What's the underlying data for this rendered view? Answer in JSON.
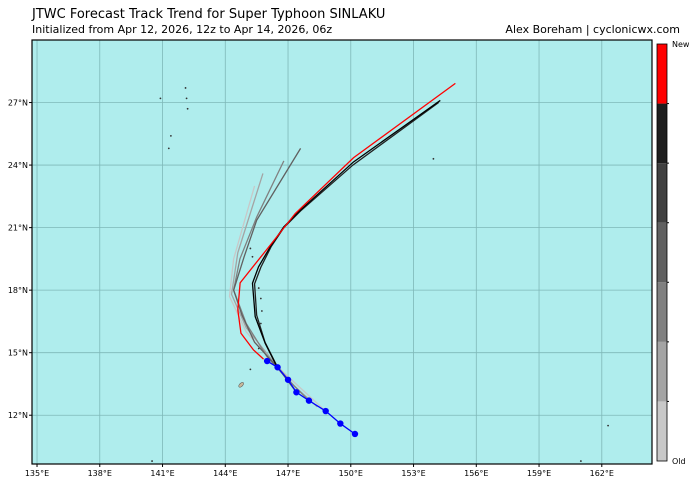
{
  "chart_data": {
    "type": "line",
    "title": "JTWC Forecast Track Trend for Super Typhoon SINLAKU",
    "subtitle": "Initialized from Apr 12, 2026, 12z to Apr 14, 2026, 06z",
    "credit": "Alex Boreham | cyclonicwx.com",
    "xlim": [
      134.76,
      164.4
    ],
    "ylim": [
      9.66,
      30.0
    ],
    "grid": true,
    "background_color": "#afeded",
    "x_ticks": [
      135,
      138,
      141,
      144,
      147,
      150,
      153,
      156,
      159,
      162
    ],
    "x_tick_labels": [
      "135°E",
      "138°E",
      "141°E",
      "144°E",
      "147°E",
      "150°E",
      "153°E",
      "156°E",
      "159°E",
      "162°E"
    ],
    "y_ticks": [
      12,
      15,
      18,
      21,
      24,
      27
    ],
    "y_tick_labels": [
      "12°N",
      "15°N",
      "18°N",
      "21°N",
      "24°N",
      "27°N"
    ],
    "colorbar": {
      "top_label": "New",
      "bottom_label": "Old",
      "colors": [
        "#c8c8c8",
        "#a4a4a4",
        "#808080",
        "#606060",
        "#404040",
        "#1e1e1e",
        "#ff0000"
      ]
    },
    "forecast_tracks": [
      {
        "color": "#c8c8c8",
        "points": [
          [
            148.8,
            12.2
          ],
          [
            147.6,
            13.3
          ],
          [
            146.3,
            14.5
          ],
          [
            145.0,
            16.0
          ],
          [
            144.2,
            17.7
          ],
          [
            144.4,
            19.5
          ],
          [
            145.4,
            23.0
          ]
        ]
      },
      {
        "color": "#a4a4a4",
        "points": [
          [
            148.4,
            12.4
          ],
          [
            147.3,
            13.4
          ],
          [
            146.2,
            14.7
          ],
          [
            145.0,
            16.2
          ],
          [
            144.3,
            17.8
          ],
          [
            144.6,
            19.8
          ],
          [
            145.8,
            23.6
          ]
        ]
      },
      {
        "color": "#808080",
        "points": [
          [
            148.0,
            12.7
          ],
          [
            147.0,
            13.7
          ],
          [
            146.0,
            14.8
          ],
          [
            145.0,
            16.4
          ],
          [
            144.4,
            18.0
          ],
          [
            144.7,
            19.5
          ],
          [
            145.5,
            21.5
          ],
          [
            146.8,
            24.2
          ]
        ]
      },
      {
        "color": "#606060",
        "points": [
          [
            147.4,
            13.1
          ],
          [
            146.5,
            14.3
          ],
          [
            145.4,
            15.5
          ],
          [
            144.8,
            16.8
          ],
          [
            144.4,
            18.0
          ],
          [
            144.9,
            19.6
          ],
          [
            145.5,
            21.35
          ],
          [
            147.6,
            24.8
          ]
        ]
      },
      {
        "color": "#202020",
        "points": [
          [
            146.5,
            14.3
          ],
          [
            145.9,
            15.5
          ],
          [
            145.5,
            16.8
          ],
          [
            145.4,
            18.3
          ],
          [
            145.7,
            19.1
          ],
          [
            146.2,
            20.1
          ],
          [
            146.8,
            21.0
          ],
          [
            147.6,
            21.8
          ],
          [
            150.1,
            24.0
          ],
          [
            154.2,
            27.0
          ]
        ]
      },
      {
        "color": "#000000",
        "points": [
          [
            146.47,
            14.33
          ],
          [
            145.91,
            15.45
          ],
          [
            145.43,
            16.73
          ],
          [
            145.3,
            18.33
          ],
          [
            145.59,
            19.12
          ],
          [
            146.15,
            20.08
          ],
          [
            146.79,
            21.03
          ],
          [
            147.58,
            21.83
          ],
          [
            150.13,
            24.15
          ],
          [
            154.28,
            27.1
          ]
        ]
      },
      {
        "color": "#ff0000",
        "points": [
          [
            145.83,
            14.69
          ],
          [
            145.35,
            15.13
          ],
          [
            144.75,
            15.93
          ],
          [
            144.6,
            17.05
          ],
          [
            144.71,
            18.35
          ],
          [
            146.15,
            20.16
          ],
          [
            147.34,
            21.67
          ],
          [
            150.13,
            24.35
          ],
          [
            155.0,
            27.92
          ]
        ]
      }
    ],
    "observed_track": {
      "color": "#0000ff",
      "points": [
        [
          150.2,
          11.1
        ],
        [
          149.5,
          11.6
        ],
        [
          148.8,
          12.2
        ],
        [
          148.0,
          12.7
        ],
        [
          147.4,
          13.1
        ],
        [
          147.0,
          13.7
        ],
        [
          146.5,
          14.3
        ],
        [
          146.0,
          14.6
        ]
      ]
    },
    "islands": [
      [
        142.1,
        27.7
      ],
      [
        142.15,
        27.2
      ],
      [
        142.2,
        26.7
      ],
      [
        140.9,
        27.2
      ],
      [
        141.4,
        25.4
      ],
      [
        141.3,
        24.8
      ],
      [
        153.95,
        24.3
      ],
      [
        144.76,
        13.46
      ],
      [
        145.2,
        14.2
      ],
      [
        145.6,
        15.2
      ],
      [
        145.7,
        16.4
      ],
      [
        145.75,
        17.0
      ],
      [
        145.7,
        17.6
      ],
      [
        145.6,
        18.1
      ],
      [
        145.3,
        19.6
      ],
      [
        145.2,
        20.0
      ],
      [
        162.3,
        11.5
      ],
      [
        161.0,
        9.8
      ],
      [
        140.5,
        9.8
      ]
    ]
  }
}
